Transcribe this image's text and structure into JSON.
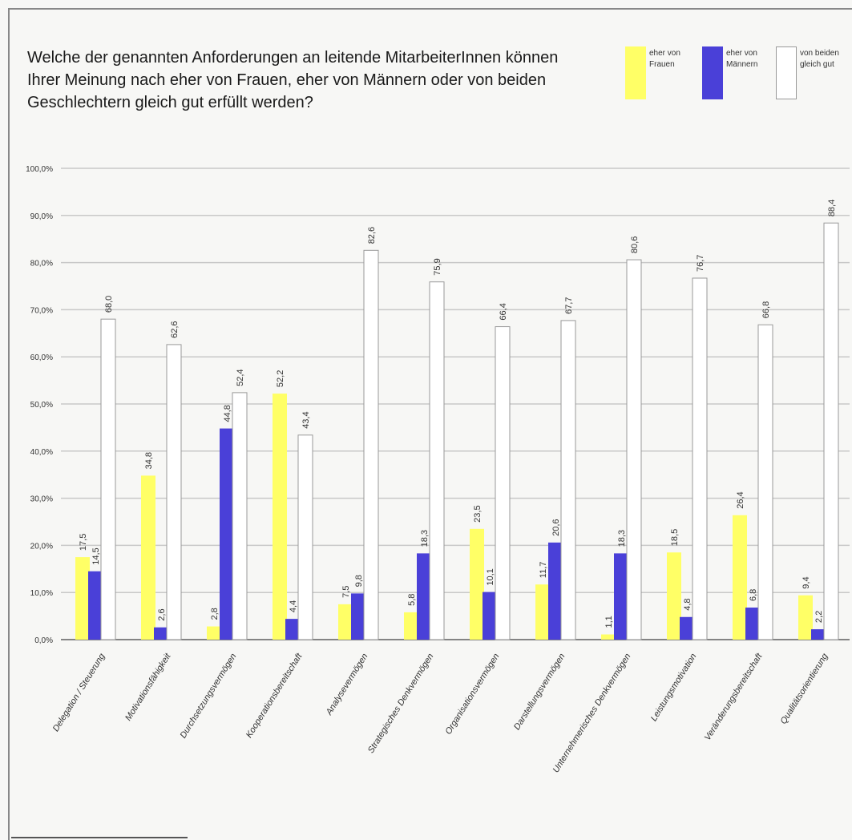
{
  "title": "Welche der genannten Anforderungen an leitende MitarbeiterInnen können\nIhrer Meinung nach eher von Frauen, eher von Männern oder von beiden\nGeschlechtern gleich gut erfüllt werden?",
  "legend": [
    {
      "name": "eher von\nFrauen",
      "color": "#ffff66"
    },
    {
      "name": "eher von\nMännern",
      "color": "#4a40d8"
    },
    {
      "name": "von beiden\ngleich gut",
      "color": "#ffffff"
    }
  ],
  "chart_data": {
    "type": "bar",
    "title": "Welche der genannten Anforderungen an leitende MitarbeiterInnen können Ihrer Meinung nach eher von Frauen, eher von Männern oder von beiden Geschlechtern gleich gut erfüllt werden?",
    "categories": [
      "Delegation / Steuerung",
      "Motivationsfähigkeit",
      "Durchsetzungsvermögen",
      "Kooperationsbereitschaft",
      "Analysevermögen",
      "Strategisches Denkvermögen",
      "Organisationsvermögen",
      "Darstellungsvermögen",
      "Unternehmerisches Denkvermögen",
      "Leistungsmotivation",
      "Veränderungsbereitschaft",
      "Qualitätsorientierung"
    ],
    "series": [
      {
        "name": "eher von Frauen",
        "color": "#ffff66",
        "values": [
          17.5,
          34.8,
          2.8,
          52.2,
          7.5,
          5.8,
          23.5,
          11.7,
          1.1,
          18.5,
          26.4,
          9.4
        ],
        "labels": [
          "17,5",
          "34,8",
          "2,8",
          "52,2",
          "7,5",
          "5,8",
          "23,5",
          "11,7",
          "1,1",
          "18,5",
          "26,4",
          "9,4"
        ]
      },
      {
        "name": "eher von Männern",
        "color": "#4a40d8",
        "values": [
          14.5,
          2.6,
          44.8,
          4.4,
          9.8,
          18.3,
          10.1,
          20.6,
          18.3,
          4.8,
          6.8,
          2.2
        ],
        "labels": [
          "14,5",
          "2,6",
          "44,8",
          "4,4",
          "9,8",
          "18,3",
          "10,1",
          "20,6",
          "18,3",
          "4,8",
          "6,8",
          "2,2"
        ]
      },
      {
        "name": "von beiden gleich gut",
        "color": "#ffffff",
        "values": [
          68.0,
          62.6,
          52.4,
          43.4,
          82.6,
          75.9,
          66.4,
          67.7,
          80.6,
          76.7,
          66.8,
          88.4
        ],
        "labels": [
          "68,0",
          "62,6",
          "52,4",
          "43,4",
          "82,6",
          "75,9",
          "66,4",
          "67,7",
          "80,6",
          "76,7",
          "66,8",
          "88,4"
        ]
      }
    ],
    "yticks": [
      0,
      10,
      20,
      30,
      40,
      50,
      60,
      70,
      80,
      90,
      100
    ],
    "ytick_labels": [
      "0,0%",
      "10,0%",
      "20,0%",
      "30,0%",
      "40,0%",
      "50,0%",
      "60,0%",
      "70,0%",
      "80,0%",
      "90,0%",
      "100,0%"
    ],
    "ylim": [
      0,
      100
    ],
    "grid": true,
    "legend_position": "top-right"
  }
}
